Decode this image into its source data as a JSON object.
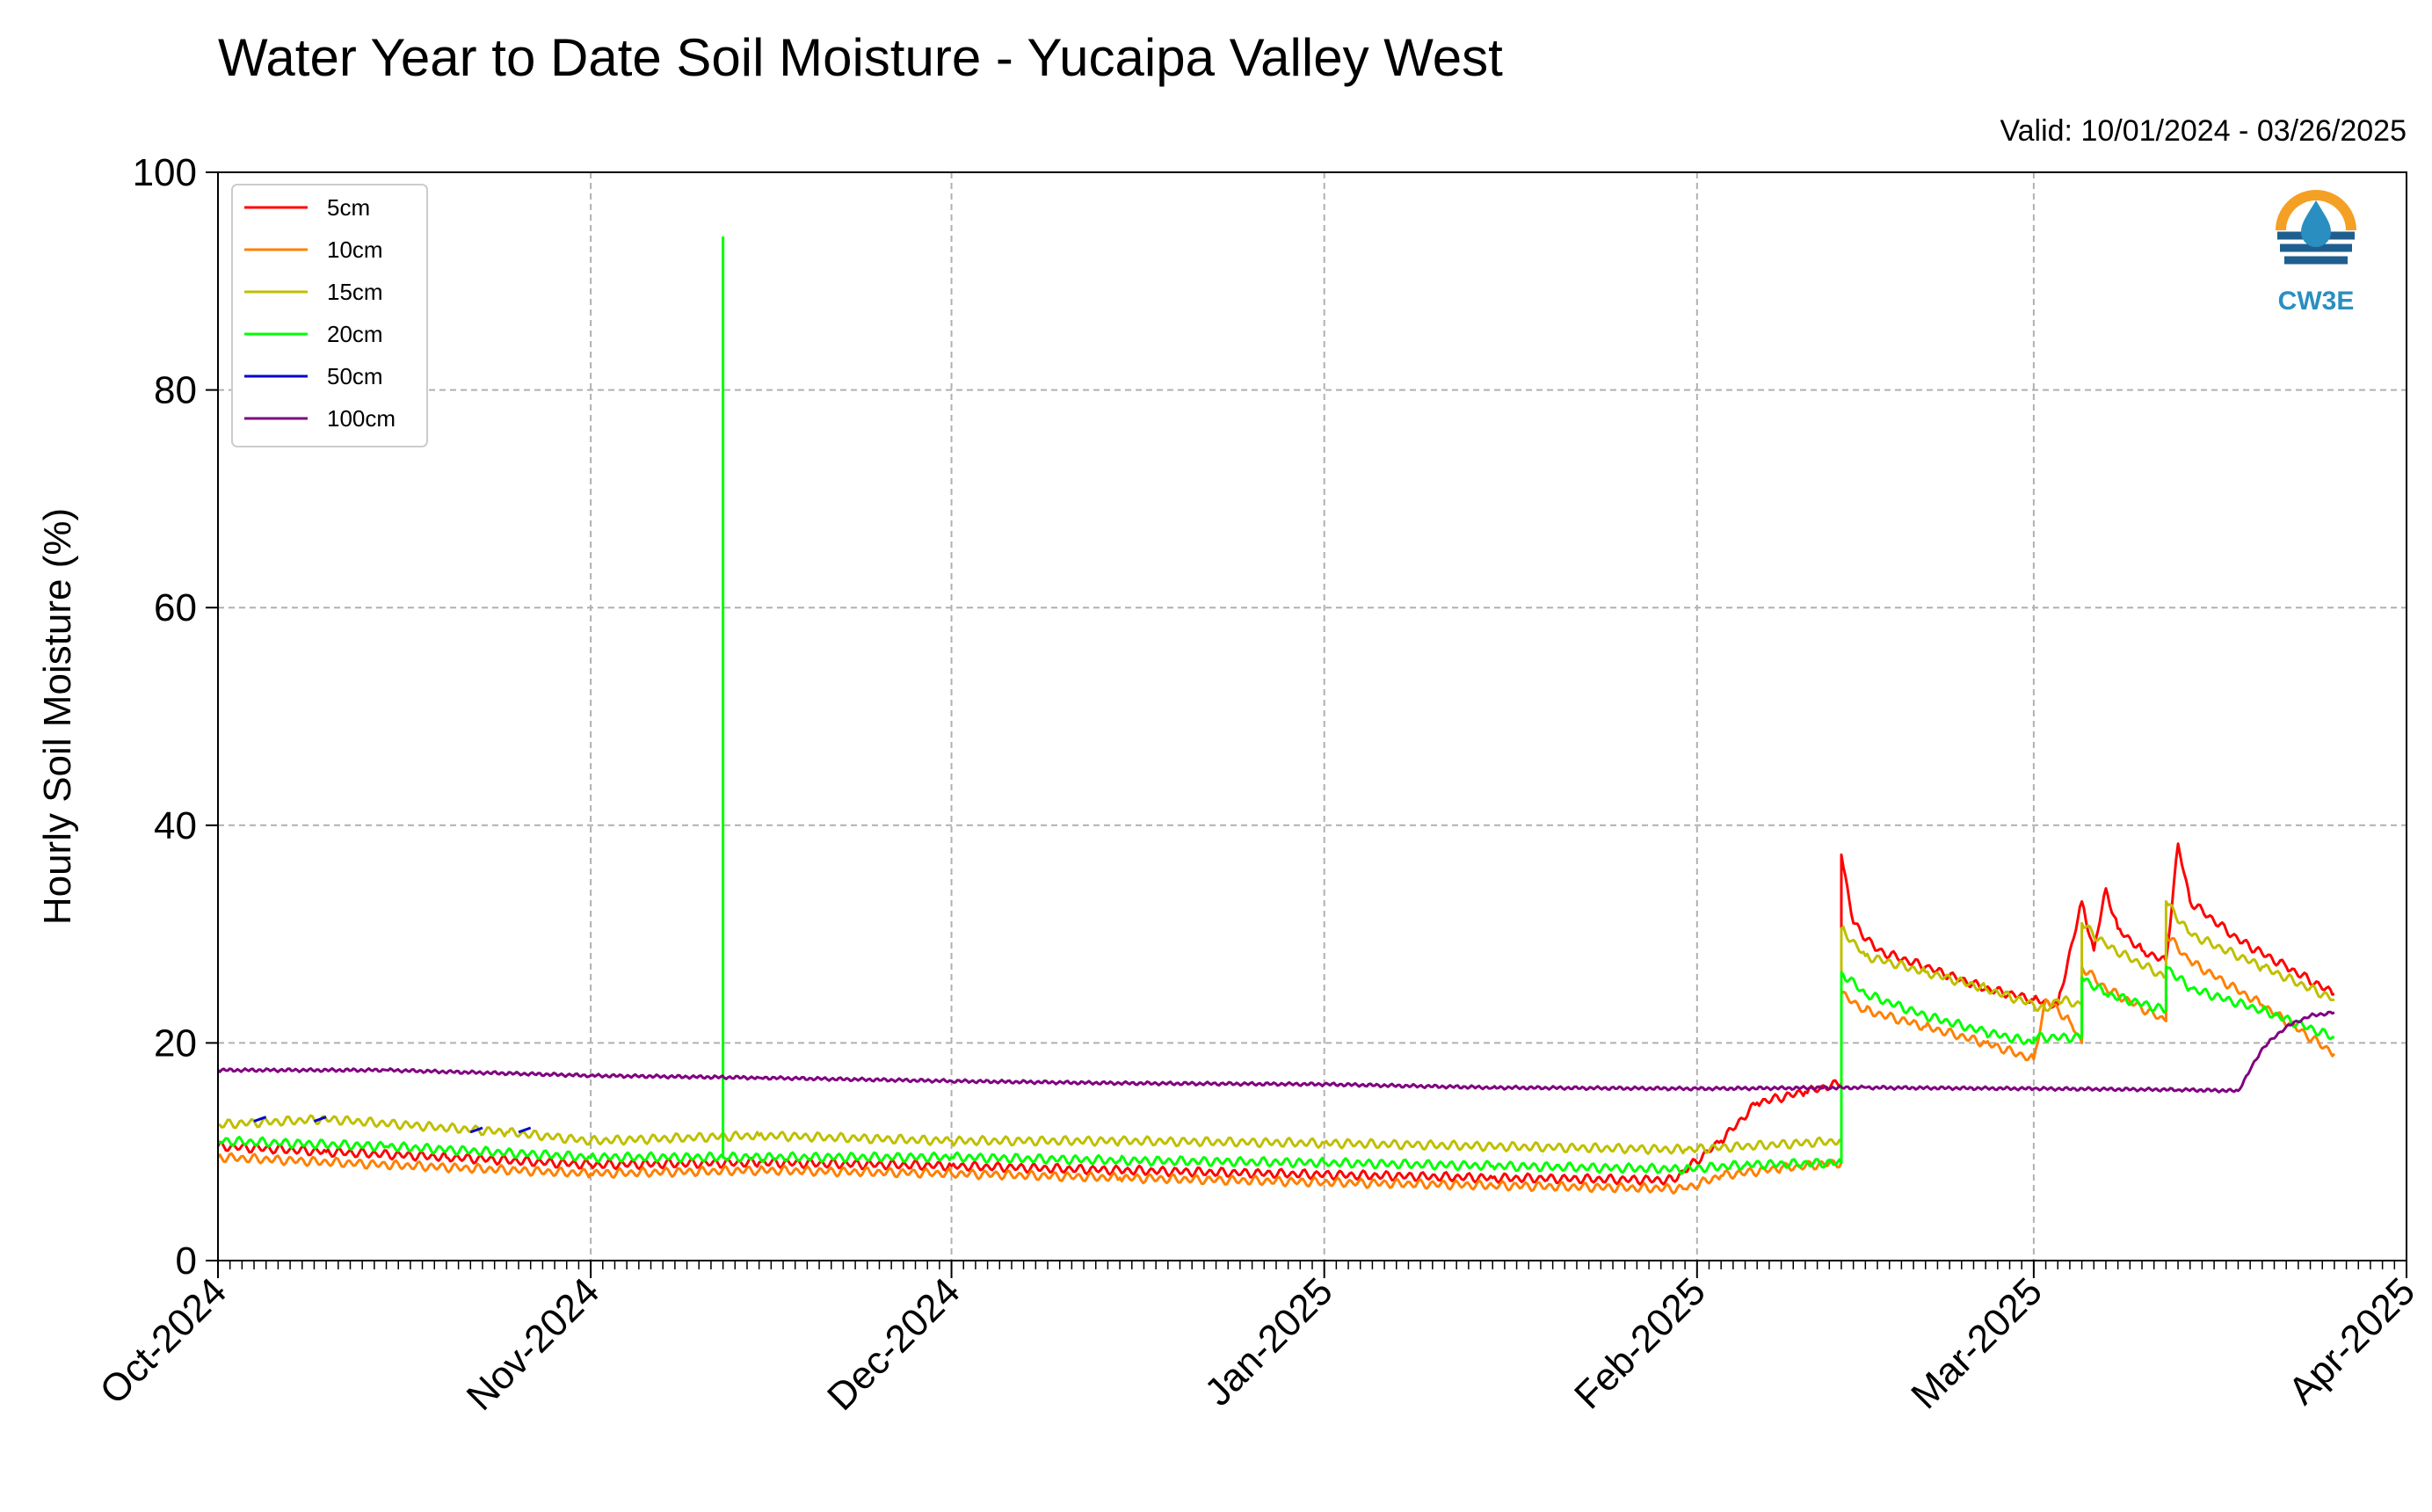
{
  "chart_data": {
    "type": "line",
    "title": "Water Year to Date Soil Moisture - Yucaipa Valley West",
    "subtitle": "Valid: 10/01/2024 - 03/26/2025",
    "xlabel": "",
    "ylabel": "Hourly Soil Moisture (%)",
    "xlim": [
      "2024-10-01",
      "2025-04-01"
    ],
    "ylim": [
      0,
      100
    ],
    "yticks": [
      0,
      20,
      40,
      60,
      80,
      100
    ],
    "xticks": [
      {
        "date": "2024-10-01",
        "label": "Oct-2024"
      },
      {
        "date": "2024-11-01",
        "label": "Nov-2024"
      },
      {
        "date": "2024-12-01",
        "label": "Dec-2024"
      },
      {
        "date": "2025-01-01",
        "label": "Jan-2025"
      },
      {
        "date": "2025-02-01",
        "label": "Feb-2025"
      },
      {
        "date": "2025-03-01",
        "label": "Mar-2025"
      },
      {
        "date": "2025-04-01",
        "label": "Apr-2025"
      }
    ],
    "grid": true,
    "legend_position": "upper-left",
    "logo": "CW3E",
    "series": [
      {
        "name": "5cm",
        "color": "#ff0000",
        "points": [
          [
            "2024-10-01",
            10.5
          ],
          [
            "2024-10-10",
            10.0
          ],
          [
            "2024-10-20",
            9.5
          ],
          [
            "2024-11-01",
            8.8
          ],
          [
            "2024-11-15",
            9.0
          ],
          [
            "2024-12-01",
            8.7
          ],
          [
            "2024-12-15",
            8.3
          ],
          [
            "2025-01-01",
            7.9
          ],
          [
            "2025-01-15",
            7.6
          ],
          [
            "2025-01-30",
            7.4
          ],
          [
            "2025-02-03",
            11.0
          ],
          [
            "2025-02-06",
            14.5
          ],
          [
            "2025-02-10",
            15.5
          ],
          [
            "2025-02-13",
            16.3
          ],
          [
            "2025-02-13",
            23.5
          ],
          [
            "2025-02-13",
            37.3
          ],
          [
            "2025-02-14",
            31.0
          ],
          [
            "2025-02-16",
            28.5
          ],
          [
            "2025-02-20",
            27.0
          ],
          [
            "2025-02-25",
            25.0
          ],
          [
            "2025-03-01",
            24.0
          ],
          [
            "2025-03-03",
            23.5
          ],
          [
            "2025-03-05",
            33.0
          ],
          [
            "2025-03-06",
            28.5
          ],
          [
            "2025-03-07",
            34.2
          ],
          [
            "2025-03-08",
            30.5
          ],
          [
            "2025-03-10",
            28.5
          ],
          [
            "2025-03-12",
            27.5
          ],
          [
            "2025-03-13",
            38.3
          ],
          [
            "2025-03-14",
            33.0
          ],
          [
            "2025-03-18",
            29.5
          ],
          [
            "2025-03-22",
            27.0
          ],
          [
            "2025-03-26",
            24.5
          ]
        ]
      },
      {
        "name": "10cm",
        "color": "#ff8000",
        "points": [
          [
            "2024-10-01",
            9.5
          ],
          [
            "2024-10-15",
            8.8
          ],
          [
            "2024-11-01",
            8.0
          ],
          [
            "2024-11-15",
            8.3
          ],
          [
            "2024-12-01",
            8.0
          ],
          [
            "2024-12-15",
            7.6
          ],
          [
            "2025-01-01",
            7.2
          ],
          [
            "2025-01-15",
            6.9
          ],
          [
            "2025-01-31",
            6.6
          ],
          [
            "2025-02-03",
            7.8
          ],
          [
            "2025-02-08",
            8.5
          ],
          [
            "2025-02-13",
            9.0
          ],
          [
            "2025-02-13",
            24.5
          ],
          [
            "2025-02-15",
            23.0
          ],
          [
            "2025-02-20",
            21.5
          ],
          [
            "2025-02-25",
            20.0
          ],
          [
            "2025-03-01",
            18.5
          ],
          [
            "2025-03-02",
            24.0
          ],
          [
            "2025-03-04",
            22.0
          ],
          [
            "2025-03-05",
            20.0
          ],
          [
            "2025-03-05",
            27.0
          ],
          [
            "2025-03-07",
            25.0
          ],
          [
            "2025-03-12",
            22.0
          ],
          [
            "2025-03-12",
            30.0
          ],
          [
            "2025-03-14",
            27.5
          ],
          [
            "2025-03-20",
            23.5
          ],
          [
            "2025-03-26",
            19.0
          ]
        ]
      },
      {
        "name": "15cm",
        "color": "#bfbf00",
        "points": [
          [
            "2024-10-01",
            12.5
          ],
          [
            "2024-10-10",
            13.0
          ],
          [
            "2024-10-25",
            11.8
          ],
          [
            "2024-11-01",
            11.0
          ],
          [
            "2024-11-15",
            11.5
          ],
          [
            "2024-12-01",
            11.0
          ],
          [
            "2024-12-15",
            11.0
          ],
          [
            "2025-01-01",
            10.8
          ],
          [
            "2025-01-15",
            10.5
          ],
          [
            "2025-01-31",
            10.2
          ],
          [
            "2025-02-05",
            10.5
          ],
          [
            "2025-02-13",
            11.0
          ],
          [
            "2025-02-13",
            30.5
          ],
          [
            "2025-02-15",
            28.0
          ],
          [
            "2025-02-20",
            26.5
          ],
          [
            "2025-02-25",
            25.0
          ],
          [
            "2025-03-01",
            23.5
          ],
          [
            "2025-03-02",
            23.0
          ],
          [
            "2025-03-03",
            24.0
          ],
          [
            "2025-03-05",
            23.5
          ],
          [
            "2025-03-05",
            31.0
          ],
          [
            "2025-03-07",
            29.0
          ],
          [
            "2025-03-12",
            26.0
          ],
          [
            "2025-03-12",
            33.0
          ],
          [
            "2025-03-14",
            30.0
          ],
          [
            "2025-03-20",
            27.0
          ],
          [
            "2025-03-26",
            24.0
          ]
        ]
      },
      {
        "name": "20cm",
        "color": "#00ff00",
        "points": [
          [
            "2024-10-01",
            11.0
          ],
          [
            "2024-10-15",
            10.5
          ],
          [
            "2024-11-01",
            9.5
          ],
          [
            "2024-11-12",
            9.5
          ],
          [
            "2024-11-12",
            94.0
          ],
          [
            "2024-11-12",
            9.5
          ],
          [
            "2024-12-01",
            9.5
          ],
          [
            "2024-12-15",
            9.2
          ],
          [
            "2025-01-01",
            9.0
          ],
          [
            "2025-01-15",
            8.7
          ],
          [
            "2025-01-31",
            8.4
          ],
          [
            "2025-02-05",
            8.8
          ],
          [
            "2025-02-13",
            9.0
          ],
          [
            "2025-02-13",
            26.5
          ],
          [
            "2025-02-15",
            24.5
          ],
          [
            "2025-02-20",
            22.5
          ],
          [
            "2025-02-25",
            21.0
          ],
          [
            "2025-03-01",
            20.0
          ],
          [
            "2025-03-01",
            20.5
          ],
          [
            "2025-03-05",
            20.5
          ],
          [
            "2025-03-05",
            26.0
          ],
          [
            "2025-03-07",
            24.5
          ],
          [
            "2025-03-12",
            23.0
          ],
          [
            "2025-03-12",
            27.0
          ],
          [
            "2025-03-14",
            25.0
          ],
          [
            "2025-03-20",
            23.0
          ],
          [
            "2025-03-26",
            20.5
          ]
        ]
      },
      {
        "name": "50cm",
        "color": "#0000cc",
        "points": [
          [
            "2024-10-04",
            12.8
          ],
          [
            "2024-10-05",
            13.2
          ],
          [
            "2024-10-09",
            12.8
          ],
          [
            "2024-10-10",
            13.2
          ],
          [
            "2024-10-22",
            11.8
          ],
          [
            "2024-10-23",
            12.2
          ],
          [
            "2024-10-26",
            11.8
          ],
          [
            "2024-10-27",
            12.2
          ]
        ]
      },
      {
        "name": "100cm",
        "color": "#800080",
        "points": [
          [
            "2024-10-01",
            17.5
          ],
          [
            "2024-10-15",
            17.5
          ],
          [
            "2024-11-01",
            17.0
          ],
          [
            "2024-11-15",
            16.8
          ],
          [
            "2024-12-01",
            16.5
          ],
          [
            "2024-12-15",
            16.3
          ],
          [
            "2025-01-01",
            16.2
          ],
          [
            "2025-01-15",
            15.9
          ],
          [
            "2025-02-01",
            15.8
          ],
          [
            "2025-02-15",
            15.9
          ],
          [
            "2025-03-01",
            15.8
          ],
          [
            "2025-03-13",
            15.7
          ],
          [
            "2025-03-18",
            15.6
          ],
          [
            "2025-03-19",
            17.5
          ],
          [
            "2025-03-20",
            19.5
          ],
          [
            "2025-03-22",
            21.5
          ],
          [
            "2025-03-24",
            22.5
          ],
          [
            "2025-03-26",
            22.8
          ]
        ]
      }
    ]
  }
}
